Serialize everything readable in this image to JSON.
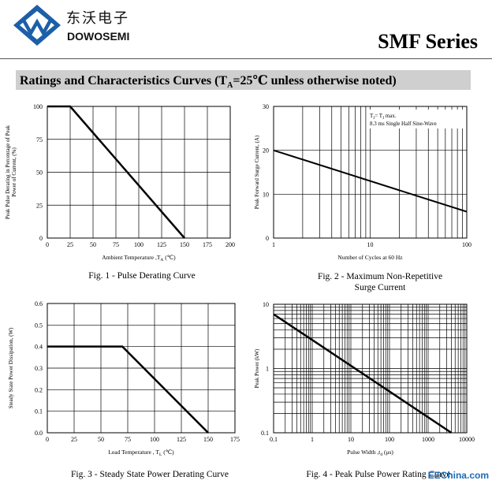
{
  "header": {
    "logo_cn": "东沃电子",
    "logo_en": "DOWOSEMI",
    "series_title": "SMF Series"
  },
  "section": {
    "title_prefix": "Ratings and Characteristics Curves (T",
    "title_sub": "A",
    "title_suffix": "=25℃ unless otherwise noted)"
  },
  "colors": {
    "section_bar": "#cfcfcf",
    "logo_blue": "#1d5ea8",
    "watermark": "#1d6ab5"
  },
  "watermark": "EEChina.com",
  "chart_data": [
    {
      "type": "line",
      "caption": "Fig. 1 - Pulse Derating Curve",
      "ylabel_lines": [
        "Peak Pulse Derating in Percentage of Peak",
        "Power of Current, (%)"
      ],
      "xlabel": "Ambient Temperature ,T",
      "xlabel_sub": "A",
      "xlabel_unit": " (℃)",
      "xlim": [
        0,
        200
      ],
      "ylim": [
        0,
        100
      ],
      "xticks": [
        0,
        25,
        50,
        75,
        100,
        125,
        150,
        175,
        200
      ],
      "yticks": [
        0,
        25,
        50,
        75,
        100
      ],
      "xtick_labels": [
        "0",
        "25",
        "50",
        "75",
        "100",
        "125",
        "150",
        "175",
        "200"
      ],
      "ytick_labels": [
        "0",
        "25",
        "50",
        "75",
        "100"
      ],
      "grid": true,
      "series": [
        {
          "x": [
            0,
            25,
            150
          ],
          "y": [
            100,
            100,
            0
          ]
        }
      ]
    },
    {
      "type": "line",
      "caption_lines": [
        "Fig. 2 - Maximum Non-Repetitive",
        "Surge Current"
      ],
      "ylabel_lines": [
        "Peak Forward Surge Current, (A)"
      ],
      "xlabel": "Number of Cycles at 60 Hz",
      "xscale": "log",
      "xlim": [
        1,
        100
      ],
      "ylim": [
        0,
        30
      ],
      "xticks": [
        1,
        10,
        100
      ],
      "yticks": [
        0,
        10,
        20,
        30
      ],
      "xtick_labels": [
        "1",
        "10",
        "100"
      ],
      "ytick_labels": [
        "0",
        "10",
        "20",
        "30"
      ],
      "grid": true,
      "annotation_line1_a": "T",
      "annotation_line1_sub_a": "J",
      "annotation_line1_b": "= T",
      "annotation_line1_sub_b": "J",
      "annotation_line1_c": " max.",
      "annotation_line2": "8.3 ms Single Half Sine-Wave",
      "series": [
        {
          "x": [
            1,
            100
          ],
          "y": [
            20,
            6
          ]
        }
      ]
    },
    {
      "type": "line",
      "caption": "Fig. 3 - Steady State Power Derating Curve",
      "ylabel_lines": [
        "Steady State Power Dissipation, (W)"
      ],
      "xlabel": "Lead Temperature , T",
      "xlabel_sub": "L",
      "xlabel_unit": " (℃)",
      "xlim": [
        0,
        175
      ],
      "ylim": [
        0,
        0.6
      ],
      "xticks": [
        0,
        25,
        50,
        75,
        100,
        125,
        150,
        175
      ],
      "yticks": [
        0,
        0.1,
        0.2,
        0.3,
        0.4,
        0.5,
        0.6
      ],
      "xtick_labels": [
        "0",
        "25",
        "50",
        "75",
        "100",
        "125",
        "150",
        "175"
      ],
      "ytick_labels": [
        "0.0",
        "0.1",
        "0.2",
        "0.3",
        "0.4",
        "0.5",
        "0.6"
      ],
      "grid": true,
      "series": [
        {
          "x": [
            0,
            70,
            150
          ],
          "y": [
            0.4,
            0.4,
            0
          ]
        }
      ]
    },
    {
      "type": "line",
      "caption": "Fig. 4 - Peak Pulse Power Rating Curve",
      "ylabel_lines": [
        "Peak Power (kW)"
      ],
      "xlabel": "Pulse Width ,t",
      "xlabel_sub": "d",
      "xlabel_unit": " (μs)",
      "xscale": "log",
      "yscale": "log",
      "xlim": [
        0.1,
        10000
      ],
      "ylim": [
        0.1,
        10
      ],
      "xticks": [
        0.1,
        1,
        10,
        100,
        1000,
        10000
      ],
      "yticks": [
        0.1,
        1,
        10
      ],
      "xtick_labels": [
        "0.1",
        "1",
        "10",
        "100",
        "1000",
        "10000"
      ],
      "ytick_labels": [
        "0.1",
        "1",
        "10"
      ],
      "grid": true,
      "series": [
        {
          "x": [
            0.1,
            4000
          ],
          "y": [
            7,
            0.1
          ]
        }
      ]
    }
  ]
}
